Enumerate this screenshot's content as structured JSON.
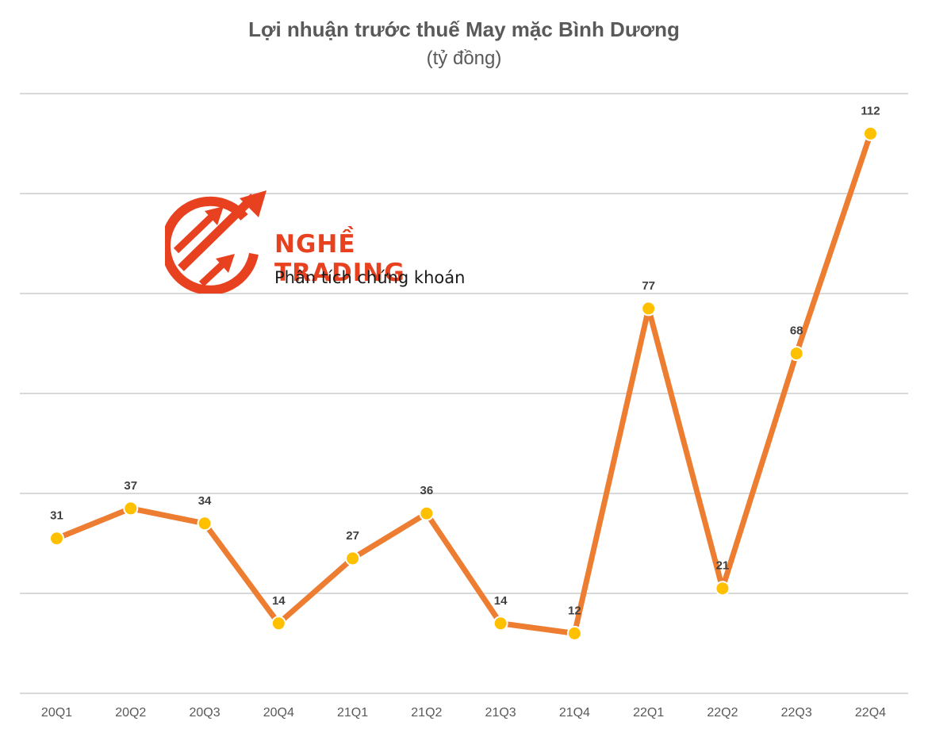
{
  "chart_data": {
    "type": "line",
    "title": "Lợi nhuận trước thuế May mặc Bình Dương",
    "subtitle": "(tỷ đồng)",
    "categories": [
      "20Q1",
      "20Q2",
      "20Q3",
      "20Q4",
      "21Q1",
      "21Q2",
      "21Q3",
      "21Q4",
      "22Q1",
      "22Q2",
      "22Q3",
      "22Q4"
    ],
    "series": [
      {
        "values": [
          31,
          37,
          34,
          14,
          27,
          36,
          14,
          12,
          77,
          21,
          68,
          112
        ]
      }
    ],
    "data_labels": [
      "31",
      "37",
      "34",
      "14",
      "27",
      "36",
      "14",
      "12",
      "77",
      "21",
      "68",
      "112"
    ],
    "ylim": [
      0,
      120
    ],
    "gridlines": true,
    "legend": "none",
    "colors": {
      "line": "#ed7d31",
      "marker": "#ffc000",
      "grid": "#d9d9d9"
    }
  },
  "watermark": {
    "name": "NGHỀ TRADING",
    "tagline": "Phân tích chứng khoán",
    "logo_icon": "trending-arrows-icon",
    "color": "#e8411f"
  }
}
